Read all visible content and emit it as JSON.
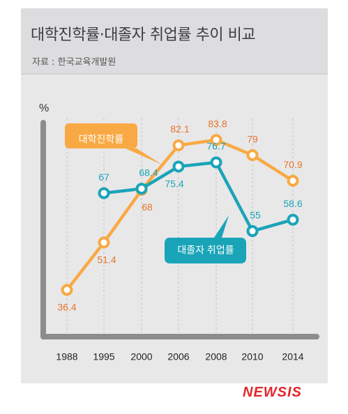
{
  "header": {
    "title": "대학진학률·대졸자 취업률 추이 비교",
    "source": "자료 : 한국교육개발원"
  },
  "logo_text": "NEWSIS",
  "colors": {
    "orange": "#f9a943",
    "orange_label": "#e8732a",
    "teal": "#1aa4b8",
    "axis": "#8c8c8e",
    "grid": "#c4c4c6"
  },
  "chart_data": {
    "type": "line",
    "ylabel": "%",
    "categories": [
      "1988",
      "1995",
      "2000",
      "2006",
      "2008",
      "2010",
      "2014"
    ],
    "series": [
      {
        "name": "대학진학률",
        "color": "#f9a943",
        "values": [
          36.4,
          51.4,
          68,
          82.1,
          83.8,
          79,
          70.9
        ]
      },
      {
        "name": "대졸자 취업률",
        "color": "#1aa4b8",
        "values": [
          null,
          67,
          68.4,
          75.4,
          76.7,
          55,
          58.6
        ]
      }
    ],
    "value_labels": {
      "orange": [
        "36.4",
        "51.4",
        "68",
        "82.1",
        "83.8",
        "79",
        "70.9"
      ],
      "teal": [
        "",
        "67",
        "68.4",
        "75.4",
        "76.7",
        "55",
        "58.6"
      ]
    },
    "grid": "vertical-dashed"
  }
}
